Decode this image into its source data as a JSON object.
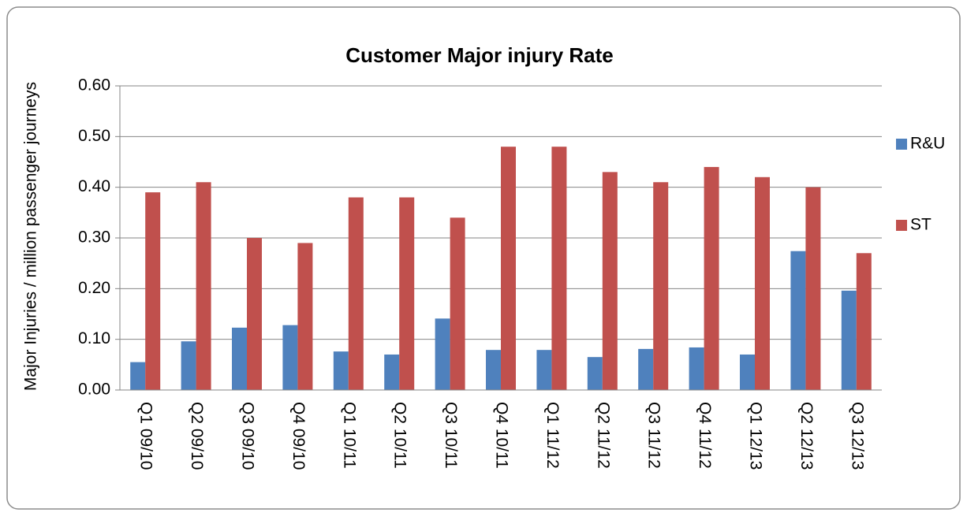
{
  "chart_data": {
    "type": "bar",
    "title": "Customer Major injury Rate",
    "y_label": "Major Injuries / million passenger journeys",
    "categories": [
      "Q1 09/10",
      "Q2 09/10",
      "Q3 09/10",
      "Q4 09/10",
      "Q1 10/11",
      "Q2 10/11",
      "Q3 10/11",
      "Q4 10/11",
      "Q1 11/12",
      "Q2 11/12",
      "Q3 11/12",
      "Q4 11/12",
      "Q1 12/13",
      "Q2 12/13",
      "Q3 12/13"
    ],
    "series": [
      {
        "name": "R&U",
        "color": "#4f81bd",
        "values": [
          0.055,
          0.096,
          0.123,
          0.128,
          0.076,
          0.07,
          0.141,
          0.079,
          0.079,
          0.065,
          0.081,
          0.084,
          0.07,
          0.274,
          0.196
        ]
      },
      {
        "name": "ST",
        "color": "#c0504d",
        "values": [
          0.39,
          0.41,
          0.3,
          0.29,
          0.38,
          0.38,
          0.34,
          0.48,
          0.48,
          0.43,
          0.41,
          0.44,
          0.42,
          0.4,
          0.27
        ]
      }
    ],
    "ylim": [
      0,
      0.6
    ],
    "yticks": [
      {
        "value": 0,
        "label": "0.00"
      },
      {
        "value": 0.1,
        "label": "0.10"
      },
      {
        "value": 0.2,
        "label": "0.20"
      },
      {
        "value": 0.3,
        "label": "0.30"
      },
      {
        "value": 0.4,
        "label": "0.40"
      },
      {
        "value": 0.5,
        "label": "0.50"
      },
      {
        "value": 0.6,
        "label": "0.60"
      }
    ],
    "grid": true,
    "legend": "right"
  }
}
